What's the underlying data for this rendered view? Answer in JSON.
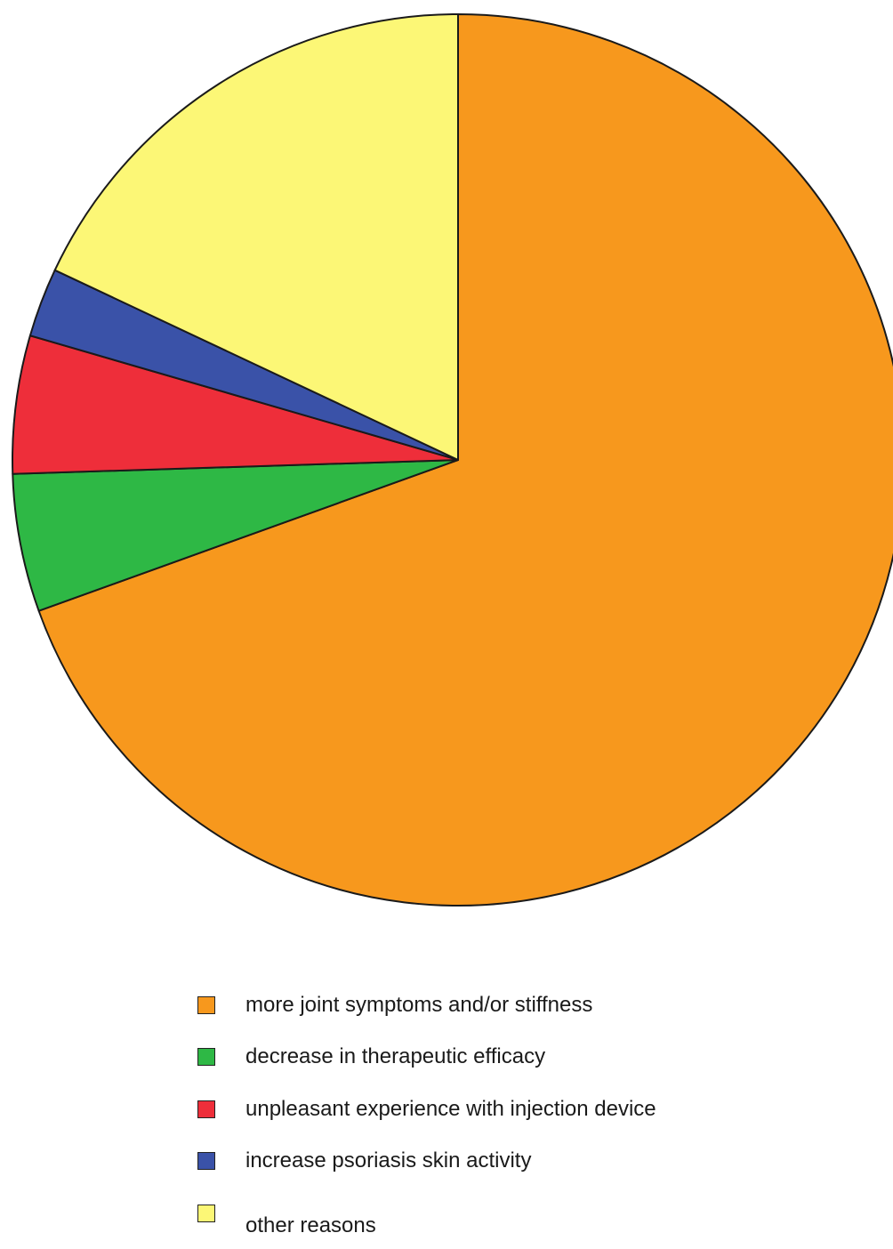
{
  "chart_data": {
    "type": "pie",
    "title": "",
    "start_angle_deg": 0,
    "direction": "clockwise",
    "slices": [
      {
        "label": "more joint symptoms and/or stiffness",
        "value": 69.5,
        "color": "#F7981D"
      },
      {
        "label": "decrease in therapeutic efficacy",
        "value": 5.0,
        "color": "#2EB845"
      },
      {
        "label": "unpleasant experience with injection device",
        "value": 5.0,
        "color": "#EE2E3A"
      },
      {
        "label": "increase psoriasis skin activity",
        "value": 2.5,
        "color": "#3A52A8"
      },
      {
        "label": "other reasons",
        "value": 18.0,
        "color": "#FCF776"
      }
    ],
    "legend_position": "bottom",
    "slice_border_color": "#1a1a1a"
  }
}
